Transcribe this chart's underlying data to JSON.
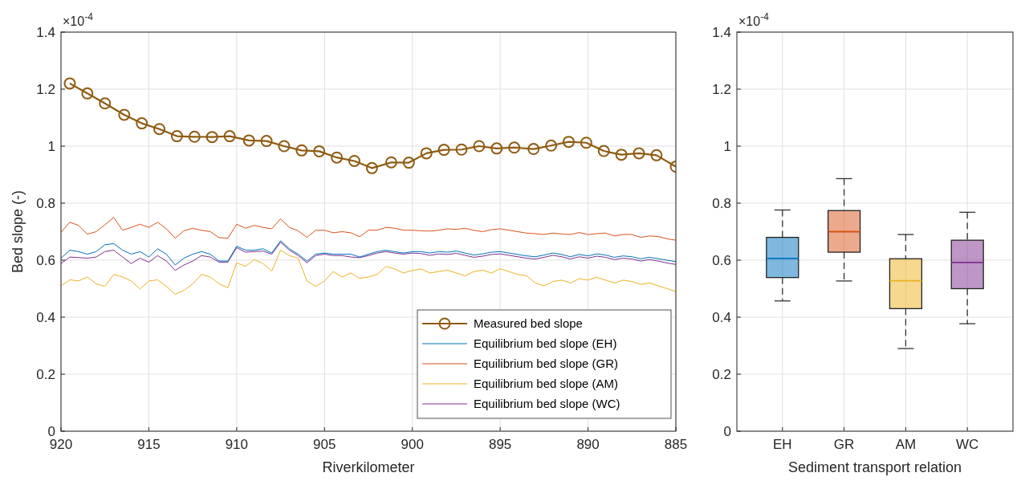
{
  "chart_data": [
    {
      "type": "line",
      "xlabel": "Riverkilometer",
      "ylabel": "Bed slope (-)",
      "annotations": [
        "×10$^{-4}$"
      ],
      "xlim": [
        920,
        885
      ],
      "xticks": [
        920,
        915,
        910,
        905,
        900,
        895,
        890,
        885
      ],
      "ylim": [
        0,
        1.4
      ],
      "yticks": [
        0,
        0.2,
        0.4,
        0.6,
        0.8,
        1,
        1.2,
        1.4
      ],
      "grid": true,
      "legend": "bottom right",
      "x": [
        920,
        919.5,
        919,
        918.5,
        918,
        917.5,
        917,
        916.5,
        916,
        915.5,
        915,
        914.5,
        914,
        913.5,
        913,
        912.5,
        912,
        911.5,
        911,
        910.5,
        910,
        909.5,
        909,
        908.5,
        908,
        907.5,
        907,
        906.5,
        906,
        905.5,
        905,
        904.5,
        904,
        903.5,
        903,
        902.5,
        902,
        901.5,
        901,
        900.5,
        900,
        899.5,
        899,
        898.5,
        898,
        897.5,
        897,
        896.5,
        896,
        895.5,
        895,
        894.5,
        894,
        893.5,
        893,
        892.5,
        892,
        891.5,
        891,
        890.5,
        890,
        889.5,
        889,
        888.5,
        888,
        887.5,
        887,
        886.5,
        886,
        885.5,
        885
      ],
      "series": [
        {
          "name": "Measured bed slope",
          "color": "#8f5b12",
          "marker": "circle",
          "x": [
            919.5,
            918.5,
            917.5,
            916.4,
            915.4,
            914.4,
            913.4,
            912.4,
            911.4,
            910.4,
            909.3,
            908.3,
            907.3,
            906.3,
            905.3,
            904.3,
            903.3,
            902.3,
            901.2,
            900.2,
            899.2,
            898.2,
            897.2,
            896.2,
            895.2,
            894.2,
            893.1,
            892.1,
            891.1,
            890.1,
            889.1,
            888.1,
            887.1,
            886.1,
            885.0
          ],
          "values": [
            1.22,
            1.185,
            1.15,
            1.11,
            1.08,
            1.06,
            1.035,
            1.033,
            1.032,
            1.035,
            1.02,
            1.018,
            1.0,
            0.985,
            0.982,
            0.96,
            0.948,
            0.923,
            0.943,
            0.942,
            0.975,
            0.987,
            0.988,
            1.0,
            0.992,
            0.995,
            0.99,
            1.002,
            1.015,
            1.012,
            0.983,
            0.97,
            0.975,
            0.968,
            0.928
          ]
        },
        {
          "name": "Equilibrium bed slope (EH)",
          "color": "#0072bd",
          "values": [
            0.607,
            0.635,
            0.63,
            0.621,
            0.63,
            0.654,
            0.658,
            0.635,
            0.621,
            0.63,
            0.611,
            0.64,
            0.621,
            0.583,
            0.607,
            0.621,
            0.63,
            0.621,
            0.597,
            0.597,
            0.649,
            0.635,
            0.635,
            0.64,
            0.625,
            0.668,
            0.64,
            0.621,
            0.597,
            0.621,
            0.625,
            0.621,
            0.621,
            0.621,
            0.611,
            0.621,
            0.63,
            0.635,
            0.63,
            0.625,
            0.63,
            0.63,
            0.625,
            0.63,
            0.628,
            0.632,
            0.625,
            0.618,
            0.622,
            0.628,
            0.63,
            0.625,
            0.62,
            0.615,
            0.612,
            0.618,
            0.625,
            0.62,
            0.612,
            0.62,
            0.615,
            0.622,
            0.618,
            0.61,
            0.615,
            0.612,
            0.605,
            0.61,
            0.605,
            0.6,
            0.595
          ]
        },
        {
          "name": "Equilibrium bed slope (GR)",
          "color": "#d95319",
          "values": [
            0.698,
            0.733,
            0.722,
            0.691,
            0.7,
            0.724,
            0.75,
            0.705,
            0.715,
            0.726,
            0.715,
            0.733,
            0.71,
            0.677,
            0.703,
            0.712,
            0.705,
            0.7,
            0.679,
            0.677,
            0.726,
            0.712,
            0.722,
            0.715,
            0.71,
            0.745,
            0.715,
            0.703,
            0.68,
            0.705,
            0.705,
            0.696,
            0.7,
            0.696,
            0.682,
            0.705,
            0.705,
            0.715,
            0.712,
            0.705,
            0.705,
            0.703,
            0.702,
            0.705,
            0.71,
            0.708,
            0.712,
            0.705,
            0.7,
            0.707,
            0.71,
            0.705,
            0.7,
            0.695,
            0.693,
            0.69,
            0.695,
            0.692,
            0.69,
            0.697,
            0.69,
            0.693,
            0.695,
            0.685,
            0.69,
            0.69,
            0.68,
            0.685,
            0.683,
            0.675,
            0.67
          ]
        },
        {
          "name": "Equilibrium bed slope (AM)",
          "color": "#edb120",
          "values": [
            0.51,
            0.531,
            0.527,
            0.541,
            0.517,
            0.508,
            0.55,
            0.541,
            0.527,
            0.499,
            0.527,
            0.531,
            0.508,
            0.48,
            0.494,
            0.517,
            0.55,
            0.541,
            0.517,
            0.503,
            0.591,
            0.578,
            0.602,
            0.588,
            0.562,
            0.635,
            0.616,
            0.607,
            0.527,
            0.508,
            0.527,
            0.56,
            0.541,
            0.555,
            0.536,
            0.541,
            0.55,
            0.578,
            0.569,
            0.555,
            0.564,
            0.569,
            0.555,
            0.56,
            0.565,
            0.555,
            0.545,
            0.56,
            0.565,
            0.555,
            0.57,
            0.56,
            0.55,
            0.545,
            0.52,
            0.51,
            0.525,
            0.53,
            0.52,
            0.535,
            0.53,
            0.54,
            0.53,
            0.52,
            0.53,
            0.525,
            0.515,
            0.52,
            0.51,
            0.5,
            0.49
          ]
        },
        {
          "name": "Equilibrium bed slope (WC)",
          "color": "#7e2f8e",
          "values": [
            0.588,
            0.611,
            0.609,
            0.607,
            0.611,
            0.63,
            0.635,
            0.611,
            0.588,
            0.607,
            0.593,
            0.616,
            0.597,
            0.564,
            0.583,
            0.597,
            0.616,
            0.611,
            0.593,
            0.593,
            0.644,
            0.628,
            0.63,
            0.632,
            0.621,
            0.663,
            0.635,
            0.616,
            0.591,
            0.616,
            0.621,
            0.616,
            0.616,
            0.611,
            0.609,
            0.616,
            0.625,
            0.63,
            0.625,
            0.621,
            0.625,
            0.623,
            0.617,
            0.622,
            0.62,
            0.624,
            0.617,
            0.61,
            0.614,
            0.62,
            0.622,
            0.617,
            0.612,
            0.607,
            0.604,
            0.61,
            0.617,
            0.612,
            0.604,
            0.612,
            0.607,
            0.614,
            0.61,
            0.602,
            0.607,
            0.604,
            0.597,
            0.602,
            0.597,
            0.59,
            0.585
          ]
        }
      ]
    },
    {
      "type": "box",
      "xlabel": "Sediment transport relation",
      "annotations": [
        "×10$^{-4}$"
      ],
      "categories": [
        "EH",
        "GR",
        "AM",
        "WC"
      ],
      "colors": [
        "#0072bd",
        "#d95319",
        "#edb120",
        "#7e2f8e"
      ],
      "ylim": [
        0,
        1.4
      ],
      "yticks": [
        0,
        0.2,
        0.4,
        0.6,
        0.8,
        1,
        1.2,
        1.4
      ],
      "grid": true,
      "boxes": [
        {
          "low": 0.457,
          "q1": 0.539,
          "median": 0.606,
          "q3": 0.68,
          "high": 0.776
        },
        {
          "low": 0.527,
          "q1": 0.628,
          "median": 0.7,
          "q3": 0.774,
          "high": 0.886
        },
        {
          "low": 0.29,
          "q1": 0.43,
          "median": 0.528,
          "q3": 0.605,
          "high": 0.69
        },
        {
          "low": 0.377,
          "q1": 0.5,
          "median": 0.592,
          "q3": 0.67,
          "high": 0.768
        }
      ]
    }
  ]
}
